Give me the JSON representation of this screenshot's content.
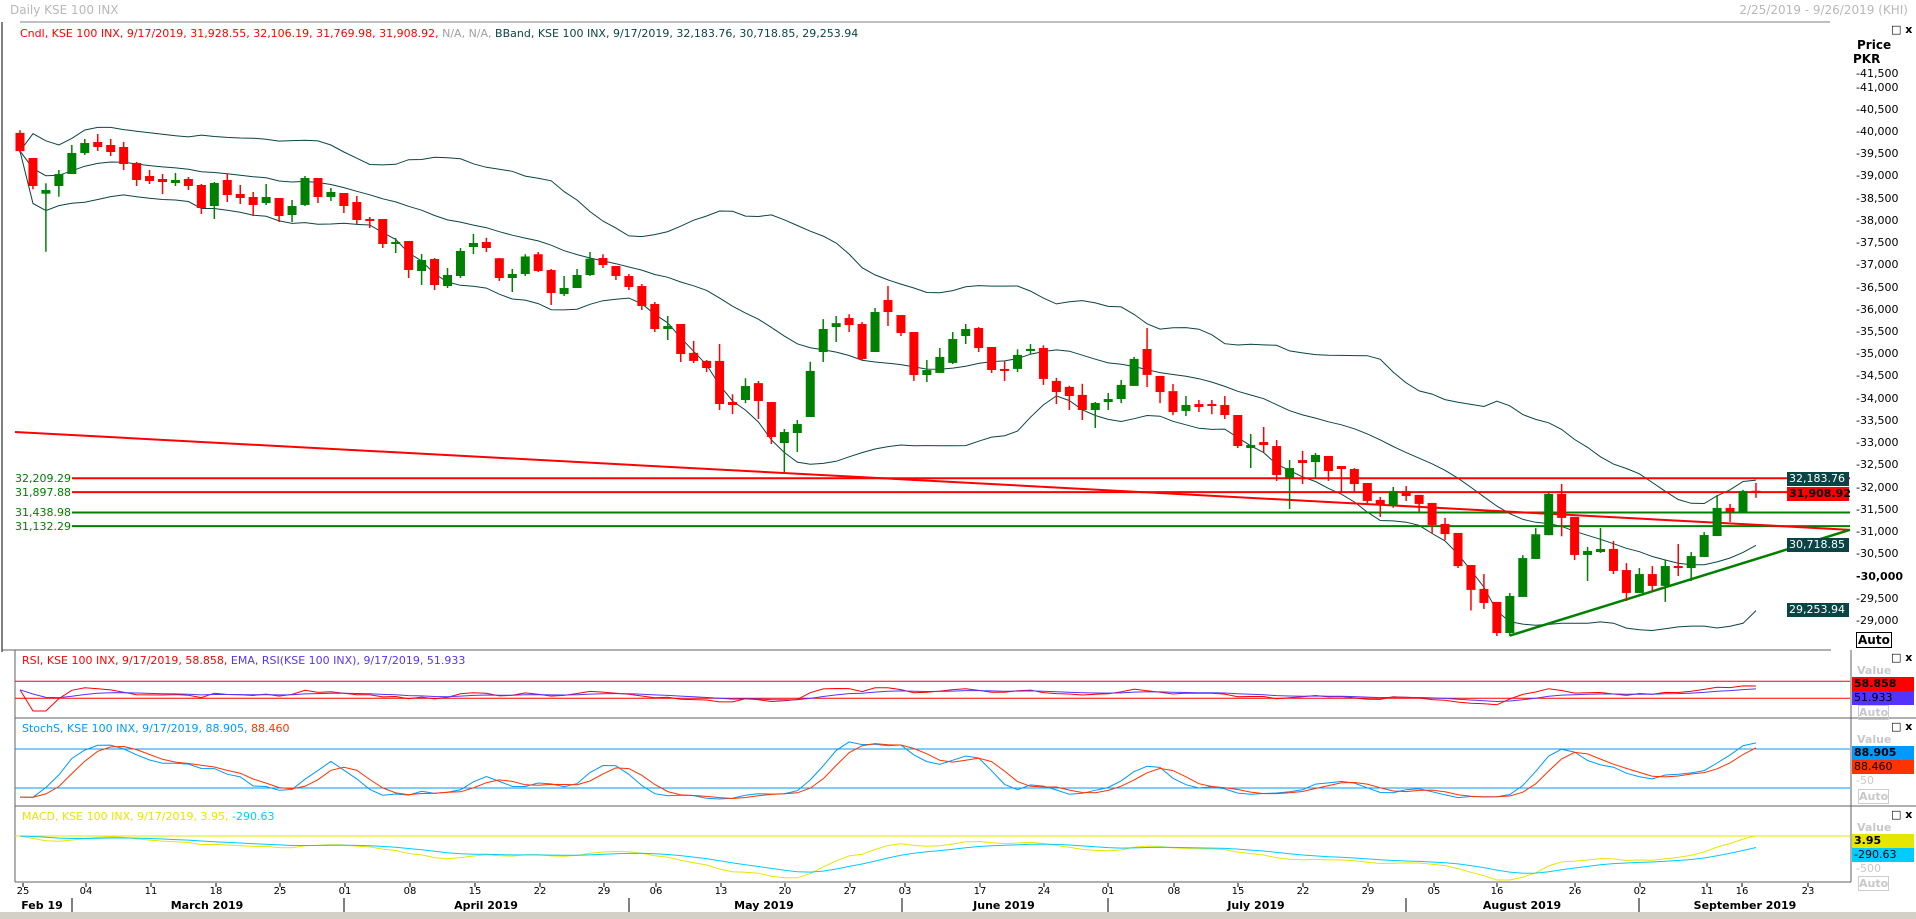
{
  "header": {
    "title": "Daily KSE 100 INX",
    "date_range": "2/25/2019 - 9/26/2019 (KHI)"
  },
  "legend": {
    "candle": "Cndl, KSE 100 INX, 9/17/2019, 31,928.55, 32,106.19, 31,769.98, 31,908.92,",
    "na": "N/A, N/A,",
    "bband": "BBand, KSE 100 INX, 9/17/2019, 32,183.76, 30,718.85, 29,253.94"
  },
  "price_axis": {
    "title": "Price",
    "unit": "PKR",
    "labels": [
      "41,500",
      "41,000",
      "40,500",
      "40,000",
      "39,500",
      "39,000",
      "38,500",
      "38,000",
      "37,500",
      "37,000",
      "36,500",
      "36,000",
      "35,500",
      "35,000",
      "34,500",
      "34,000",
      "33,500",
      "33,000",
      "32,500",
      "32,000",
      "31,500",
      "31,000",
      "30,500",
      "30,000",
      "29,500",
      "29,000"
    ],
    "auto": "Auto",
    "value_boxes": [
      {
        "text": "32,183.76",
        "value": 32183.76,
        "bg": "#0b4444",
        "fg": "#ffffff"
      },
      {
        "text": "31,908.92",
        "value": 31908.92,
        "bg": "#ff0000",
        "fg": "#000000"
      },
      {
        "text": "30,718.85",
        "value": 30718.85,
        "bg": "#0b4444",
        "fg": "#ffffff"
      },
      {
        "text": "29,253.94",
        "value": 29253.94,
        "bg": "#0b4444",
        "fg": "#ffffff"
      }
    ]
  },
  "levels": [
    {
      "label": "32,209.29",
      "value": 32209.29,
      "color": "#ff0000"
    },
    {
      "label": "31,897.88",
      "value": 31897.88,
      "color": "#ff0000"
    },
    {
      "label": "31,438.98",
      "value": 31438.98,
      "color": "#008000"
    },
    {
      "label": "31,132.29",
      "value": 31132.29,
      "color": "#008000"
    }
  ],
  "rsi_panel": {
    "legend_rsi": "RSI, KSE 100 INX, 9/17/2019, 58.858,",
    "legend_ema": "EMA, RSI(KSE 100 INX), 9/17/2019, 51.933",
    "value_label": "Value",
    "rsi_box": "58.858",
    "ema_box": "51.933",
    "auto": "Auto",
    "levels": [
      70,
      30
    ],
    "rsi_color": "#ff0000",
    "ema_color": "#5533ff"
  },
  "stoch_panel": {
    "legend_k": "StochS, KSE 100 INX, 9/17/2019, 88.905,",
    "legend_d": "88.460",
    "value_label": "Value",
    "k_box": "88.905",
    "d_box": "88.460",
    "mid": "-50",
    "auto": "Auto",
    "levels": [
      80,
      20
    ],
    "k_color": "#0099ff",
    "d_color": "#ff3300"
  },
  "macd_panel": {
    "legend": "MACD, KSE 100 INX, 9/17/2019, 3.95,",
    "legend_signal": "-290.63",
    "value_label": "Value",
    "macd_box": "3.95",
    "signal_box": "-290.63",
    "mid": "-500",
    "auto": "Auto",
    "macd_color": "#e6e600",
    "signal_color": "#00ccff"
  },
  "x_axis": {
    "days": [
      "25",
      "04",
      "11",
      "18",
      "25",
      "01",
      "08",
      "15",
      "22",
      "29",
      "06",
      "13",
      "20",
      "27",
      "03",
      "17",
      "24",
      "01",
      "08",
      "15",
      "22",
      "29",
      "05",
      "16",
      "26",
      "02",
      "11",
      "16",
      "23"
    ],
    "months": [
      "Feb 19",
      "March 2019",
      "April 2019",
      "May 2019",
      "June 2019",
      "July 2019",
      "August 2019",
      "September 2019"
    ]
  },
  "chart_data": {
    "type": "candlestick",
    "title": "Daily KSE 100 INX",
    "ylabel": "Price PKR",
    "ylim": [
      28500,
      41700
    ],
    "x_range": [
      "2/25/2019",
      "9/26/2019"
    ],
    "up_color": "#008000",
    "down_color": "#ff0000",
    "band_color": "#0b4444",
    "bollinger": {
      "upper": 32183.76,
      "middle": 30718.85,
      "lower": 29253.94
    },
    "trendlines": [
      {
        "color": "#ff0000",
        "start_price": 33250,
        "end_price": 31050
      },
      {
        "color": "#008000",
        "start_price": 28670,
        "end_price": 31050
      }
    ],
    "ohlc": [
      [
        39980,
        40040,
        39540,
        39570
      ],
      [
        39415,
        39415,
        38710,
        38785
      ],
      [
        38612,
        38846,
        37307,
        38695
      ],
      [
        38785,
        39145,
        38545,
        39055
      ],
      [
        39055,
        39708,
        39055,
        39528
      ],
      [
        39528,
        39843,
        39483,
        39753
      ],
      [
        39775,
        39955,
        39573,
        39663
      ],
      [
        39708,
        39843,
        39460,
        39550
      ],
      [
        39663,
        39775,
        39145,
        39280
      ],
      [
        39303,
        39325,
        38785,
        38920
      ],
      [
        39010,
        39145,
        38830,
        38898
      ],
      [
        38943,
        39055,
        38605,
        38875
      ],
      [
        38853,
        39078,
        38785,
        38920
      ],
      [
        38943,
        38988,
        38695,
        38785
      ],
      [
        38808,
        38830,
        38155,
        38290
      ],
      [
        38335,
        38875,
        38043,
        38853
      ],
      [
        38920,
        39055,
        38425,
        38583
      ],
      [
        38605,
        38808,
        38380,
        38515
      ],
      [
        38538,
        38650,
        38110,
        38358
      ],
      [
        38403,
        38830,
        38358,
        38538
      ],
      [
        38515,
        38515,
        37975,
        38110
      ],
      [
        38133,
        38470,
        37975,
        38335
      ],
      [
        38358,
        39010,
        38335,
        38965
      ],
      [
        38965,
        38965,
        38403,
        38538
      ],
      [
        38538,
        38740,
        38448,
        38650
      ],
      [
        38628,
        38628,
        38178,
        38335
      ],
      [
        38425,
        38560,
        37930,
        38020
      ],
      [
        38043,
        38088,
        37840,
        37998
      ],
      [
        38043,
        38043,
        37390,
        37480
      ],
      [
        37480,
        37615,
        37278,
        37525
      ],
      [
        37548,
        37548,
        36715,
        36895
      ],
      [
        36873,
        37255,
        36558,
        37120
      ],
      [
        37143,
        37165,
        36445,
        36558
      ],
      [
        36535,
        36940,
        36490,
        36783
      ],
      [
        36760,
        37390,
        36715,
        37323
      ],
      [
        37413,
        37705,
        37255,
        37503
      ],
      [
        37525,
        37620,
        37300,
        37390
      ],
      [
        37160,
        37165,
        36650,
        36715
      ],
      [
        36715,
        36918,
        36400,
        36805
      ],
      [
        36805,
        37250,
        36760,
        37200
      ],
      [
        37250,
        37300,
        36850,
        36873
      ],
      [
        36895,
        36918,
        36108,
        36378
      ],
      [
        36355,
        36760,
        36310,
        36490
      ],
      [
        36490,
        36918,
        36490,
        36783
      ],
      [
        36783,
        37300,
        36760,
        37150
      ],
      [
        37165,
        37250,
        36940,
        37008
      ],
      [
        36985,
        36985,
        36670,
        36760
      ],
      [
        36760,
        36805,
        36445,
        36513
      ],
      [
        36535,
        36580,
        35995,
        36085
      ],
      [
        36130,
        36175,
        35500,
        35568
      ],
      [
        35568,
        35860,
        35320,
        35635
      ],
      [
        35680,
        35680,
        34825,
        35005
      ],
      [
        35030,
        35300,
        34803,
        34850
      ],
      [
        34850,
        34870,
        34600,
        34690
      ],
      [
        34850,
        35230,
        33745,
        33880
      ],
      [
        33925,
        34100,
        33655,
        33858
      ],
      [
        33970,
        34460,
        33900,
        34285
      ],
      [
        34350,
        34400,
        33543,
        33948
      ],
      [
        33925,
        33925,
        32980,
        33138
      ],
      [
        33003,
        33318,
        32350,
        33250
      ],
      [
        33228,
        33520,
        32800,
        33430
      ],
      [
        33588,
        34830,
        33588,
        34625
      ],
      [
        35050,
        35790,
        34825,
        35568
      ],
      [
        35612,
        35860,
        35275,
        35700
      ],
      [
        35815,
        35900,
        35500,
        35657
      ],
      [
        35680,
        35725,
        34870,
        34893
      ],
      [
        35050,
        36040,
        35050,
        35950
      ],
      [
        36220,
        36535,
        35635,
        35950
      ],
      [
        35882,
        35882,
        35410,
        35478
      ],
      [
        35500,
        35500,
        34400,
        34533
      ],
      [
        34533,
        34870,
        34375,
        34645
      ],
      [
        34580,
        35140,
        34580,
        34940
      ],
      [
        34805,
        35500,
        34780,
        35343
      ],
      [
        35410,
        35680,
        35230,
        35568
      ],
      [
        35590,
        35610,
        35050,
        35140
      ],
      [
        35163,
        35163,
        34580,
        34645
      ],
      [
        34670,
        34850,
        34400,
        34623
      ],
      [
        34670,
        35110,
        34600,
        34985
      ],
      [
        35073,
        35230,
        35000,
        35120
      ],
      [
        35140,
        35200,
        34310,
        34445
      ],
      [
        34400,
        34470,
        33880,
        34150
      ],
      [
        34265,
        34290,
        33745,
        34060
      ],
      [
        34085,
        34335,
        33520,
        33745
      ],
      [
        33745,
        33925,
        33340,
        33903
      ],
      [
        33925,
        34130,
        33745,
        33993
      ],
      [
        33993,
        34420,
        33900,
        34310
      ],
      [
        34288,
        34940,
        34288,
        34895
      ],
      [
        35118,
        35590,
        34263,
        34535
      ],
      [
        34512,
        34512,
        33900,
        34150
      ],
      [
        34170,
        34330,
        33630,
        33700
      ],
      [
        33725,
        34060,
        33610,
        33858
      ],
      [
        33880,
        33970,
        33700,
        33813
      ],
      [
        33880,
        33970,
        33650,
        33835
      ],
      [
        33858,
        34060,
        33543,
        33633
      ],
      [
        33633,
        33633,
        32890,
        32935
      ],
      [
        32890,
        33205,
        32440,
        32958
      ],
      [
        33025,
        33363,
        32800,
        32958
      ],
      [
        32935,
        33070,
        32148,
        32283
      ],
      [
        32215,
        32620,
        31520,
        32440
      ],
      [
        32620,
        32825,
        32080,
        32553
      ],
      [
        32575,
        32780,
        32215,
        32733
      ],
      [
        32712,
        32712,
        32150,
        32373
      ],
      [
        32485,
        32485,
        31900,
        32418
      ],
      [
        32418,
        32440,
        31880,
        32080
      ],
      [
        32103,
        32103,
        31650,
        31700
      ],
      [
        31723,
        31790,
        31340,
        31610
      ],
      [
        31610,
        32013,
        31545,
        31925
      ],
      [
        31925,
        32035,
        31700,
        31810
      ],
      [
        31835,
        31835,
        31460,
        31633
      ],
      [
        31655,
        31655,
        30970,
        31160
      ],
      [
        31183,
        31320,
        30820,
        30955
      ],
      [
        30980,
        30980,
        30190,
        30235
      ],
      [
        30258,
        30258,
        29235,
        29698
      ],
      [
        29720,
        30055,
        29270,
        29405
      ],
      [
        29428,
        29428,
        28660,
        28728
      ],
      [
        28728,
        29630,
        28660,
        29563
      ],
      [
        29540,
        30480,
        29540,
        30415
      ],
      [
        30395,
        31090,
        30395,
        30950
      ],
      [
        30930,
        31880,
        30930,
        31858
      ],
      [
        31858,
        32080,
        30905,
        31318
      ],
      [
        31340,
        31340,
        30370,
        30485
      ],
      [
        30485,
        30665,
        29900,
        30575
      ],
      [
        30550,
        31090,
        30530,
        30620
      ],
      [
        30620,
        30800,
        30055,
        30125
      ],
      [
        30145,
        30300,
        29450,
        29630
      ],
      [
        29630,
        30190,
        29630,
        30055
      ],
      [
        30055,
        30235,
        29675,
        29788
      ],
      [
        29788,
        30370,
        29428,
        30235
      ],
      [
        30235,
        30730,
        30010,
        30190
      ],
      [
        30190,
        30550,
        29900,
        30460
      ],
      [
        30438,
        31000,
        30438,
        30933
      ],
      [
        30910,
        31835,
        30910,
        31543
      ],
      [
        31543,
        31633,
        31228,
        31453
      ],
      [
        31453,
        31950,
        31453,
        31925
      ],
      [
        31928.55,
        32106.19,
        31769.98,
        31908.92
      ]
    ]
  }
}
